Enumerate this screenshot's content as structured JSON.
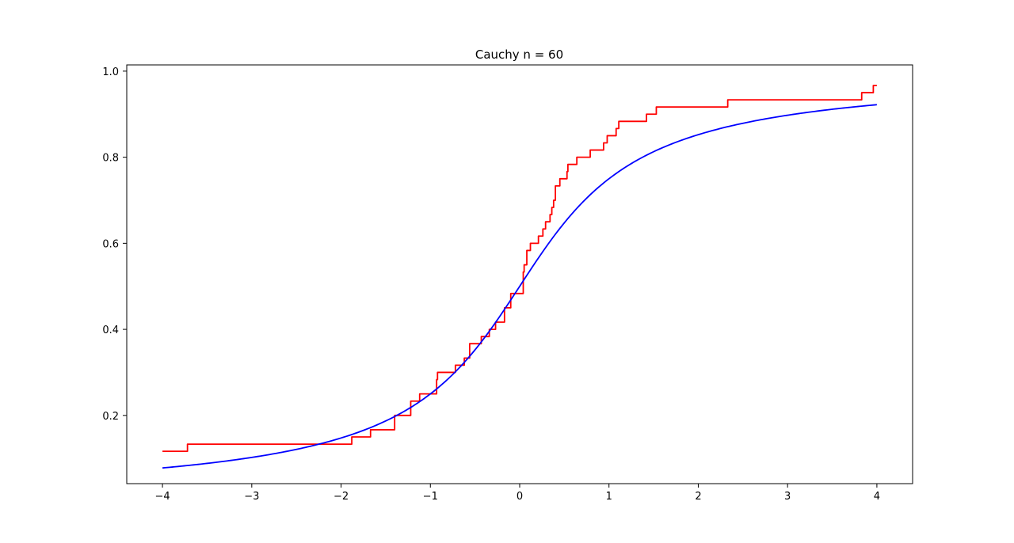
{
  "chart_data": {
    "type": "line",
    "title": "Cauchy n = 60",
    "xlabel": "",
    "ylabel": "",
    "xlim": [
      -4.4,
      4.4
    ],
    "ylim": [
      0.0415,
      1.0145
    ],
    "x_ticks": [
      -4,
      -3,
      -2,
      -1,
      0,
      1,
      2,
      3,
      4
    ],
    "x_tick_labels": [
      "−4",
      "−3",
      "−2",
      "−1",
      "0",
      "1",
      "2",
      "3",
      "4"
    ],
    "y_ticks": [
      0.2,
      0.4,
      0.6,
      0.8,
      1.0
    ],
    "y_tick_labels": [
      "0.2",
      "0.4",
      "0.6",
      "0.8",
      "1.0"
    ],
    "grid": false,
    "series": [
      {
        "kind": "empirical_cdf",
        "color": "#ff0000",
        "x_start": -4,
        "x_end": 4,
        "initial_value": 0.1167,
        "steps": [
          [
            -3.72,
            0.1333
          ],
          [
            -1.88,
            0.15
          ],
          [
            -1.67,
            0.1667
          ],
          [
            -1.4,
            0.2
          ],
          [
            -1.22,
            0.2333
          ],
          [
            -1.12,
            0.25
          ],
          [
            -0.93,
            0.2833
          ],
          [
            -0.92,
            0.3
          ],
          [
            -0.72,
            0.3167
          ],
          [
            -0.62,
            0.3333
          ],
          [
            -0.56,
            0.3667
          ],
          [
            -0.43,
            0.3833
          ],
          [
            -0.34,
            0.4
          ],
          [
            -0.27,
            0.4167
          ],
          [
            -0.17,
            0.45
          ],
          [
            -0.1,
            0.4833
          ],
          [
            0.04,
            0.5333
          ],
          [
            0.05,
            0.55
          ],
          [
            0.08,
            0.5833
          ],
          [
            0.12,
            0.6
          ],
          [
            0.21,
            0.6167
          ],
          [
            0.26,
            0.6333
          ],
          [
            0.29,
            0.65
          ],
          [
            0.34,
            0.6667
          ],
          [
            0.36,
            0.6833
          ],
          [
            0.38,
            0.7
          ],
          [
            0.4,
            0.7333
          ],
          [
            0.45,
            0.75
          ],
          [
            0.53,
            0.7667
          ],
          [
            0.54,
            0.7833
          ],
          [
            0.64,
            0.8
          ],
          [
            0.79,
            0.8167
          ],
          [
            0.94,
            0.8333
          ],
          [
            0.98,
            0.85
          ],
          [
            1.08,
            0.8667
          ],
          [
            1.11,
            0.8833
          ],
          [
            1.42,
            0.9
          ],
          [
            1.53,
            0.9167
          ],
          [
            2.33,
            0.9333
          ],
          [
            3.83,
            0.95
          ],
          [
            3.96,
            0.9667
          ]
        ]
      },
      {
        "kind": "theoretical_cdf",
        "name": "",
        "function": "cauchy_cdf",
        "color": "#0000ff",
        "x": [
          -4,
          -3.5,
          -3,
          -2.5,
          -2,
          -1.5,
          -1,
          -0.75,
          -0.5,
          -0.25,
          0,
          0.25,
          0.5,
          0.75,
          1,
          1.5,
          2,
          2.5,
          3,
          3.5,
          4
        ],
        "values": [
          0.078,
          0.0886,
          0.1024,
          0.1211,
          0.1476,
          0.1872,
          0.25,
          0.2952,
          0.3524,
          0.422,
          0.5,
          0.578,
          0.6476,
          0.7048,
          0.75,
          0.8128,
          0.8524,
          0.8789,
          0.8976,
          0.9114,
          0.922
        ]
      }
    ]
  }
}
